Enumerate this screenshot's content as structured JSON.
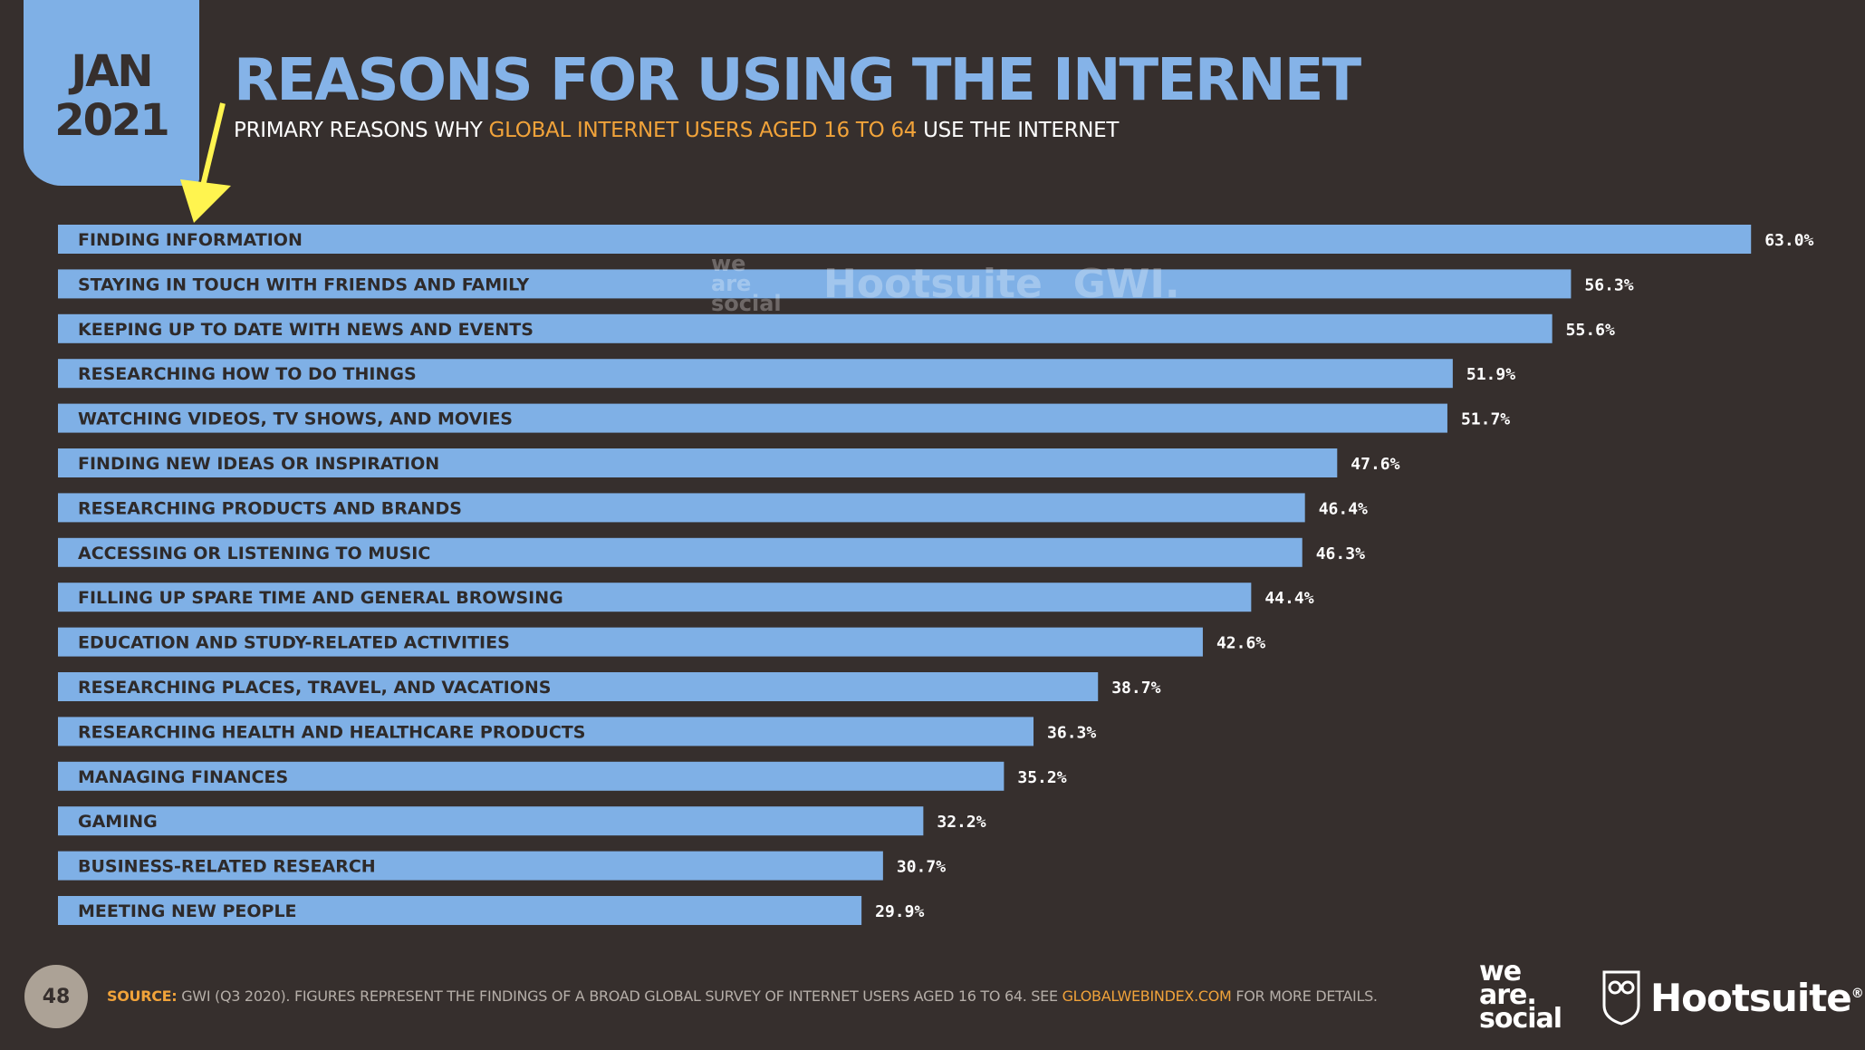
{
  "header": {
    "date_month": "JAN",
    "date_year": "2021",
    "title": "REASONS FOR USING THE INTERNET",
    "subtitle_pre": "PRIMARY REASONS WHY ",
    "subtitle_highlight": "GLOBAL INTERNET USERS AGED 16 TO 64",
    "subtitle_post": " USE THE INTERNET"
  },
  "colors": {
    "background": "#362f2d",
    "bar": "#7fb0e6",
    "title": "#85b3e8",
    "accent": "#f1a33a",
    "arrow": "#fff44f"
  },
  "chart_data": {
    "type": "bar",
    "orientation": "horizontal",
    "title": "REASONS FOR USING THE INTERNET",
    "categories": [
      "FINDING INFORMATION",
      "STAYING IN TOUCH WITH FRIENDS AND FAMILY",
      "KEEPING UP TO DATE WITH NEWS AND EVENTS",
      "RESEARCHING HOW TO DO THINGS",
      "WATCHING VIDEOS, TV SHOWS, AND MOVIES",
      "FINDING NEW IDEAS OR INSPIRATION",
      "RESEARCHING PRODUCTS AND BRANDS",
      "ACCESSING OR LISTENING TO MUSIC",
      "FILLING UP SPARE TIME AND GENERAL BROWSING",
      "EDUCATION AND STUDY-RELATED ACTIVITIES",
      "RESEARCHING PLACES, TRAVEL, AND VACATIONS",
      "RESEARCHING HEALTH AND HEALTHCARE PRODUCTS",
      "MANAGING FINANCES",
      "GAMING",
      "BUSINESS-RELATED RESEARCH",
      "MEETING NEW PEOPLE"
    ],
    "values": [
      63.0,
      56.3,
      55.6,
      51.9,
      51.7,
      47.6,
      46.4,
      46.3,
      44.4,
      42.6,
      38.7,
      36.3,
      35.2,
      32.2,
      30.7,
      29.9
    ],
    "value_labels": [
      "63.0%",
      "56.3%",
      "55.6%",
      "51.9%",
      "51.7%",
      "47.6%",
      "46.4%",
      "46.3%",
      "44.4%",
      "42.6%",
      "38.7%",
      "36.3%",
      "35.2%",
      "32.2%",
      "30.7%",
      "29.9%"
    ],
    "unit": "%",
    "grid": false,
    "annotation": "yellow arrow pointing to FINDING INFORMATION"
  },
  "watermark": {
    "brand1": "we are social",
    "brand2": "Hootsuite",
    "brand3": "GWI."
  },
  "footer": {
    "page_number": "48",
    "source_label": "SOURCE:",
    "source_text": " GWI (Q3 2020). FIGURES REPRESENT THE FINDINGS OF A BROAD GLOBAL SURVEY OF INTERNET USERS AGED 16 TO 64. SEE ",
    "source_link": "GLOBALWEBINDEX.COM",
    "source_end": " FOR MORE DETAILS.",
    "logo1": "we are social",
    "logo2": "Hootsuite"
  }
}
